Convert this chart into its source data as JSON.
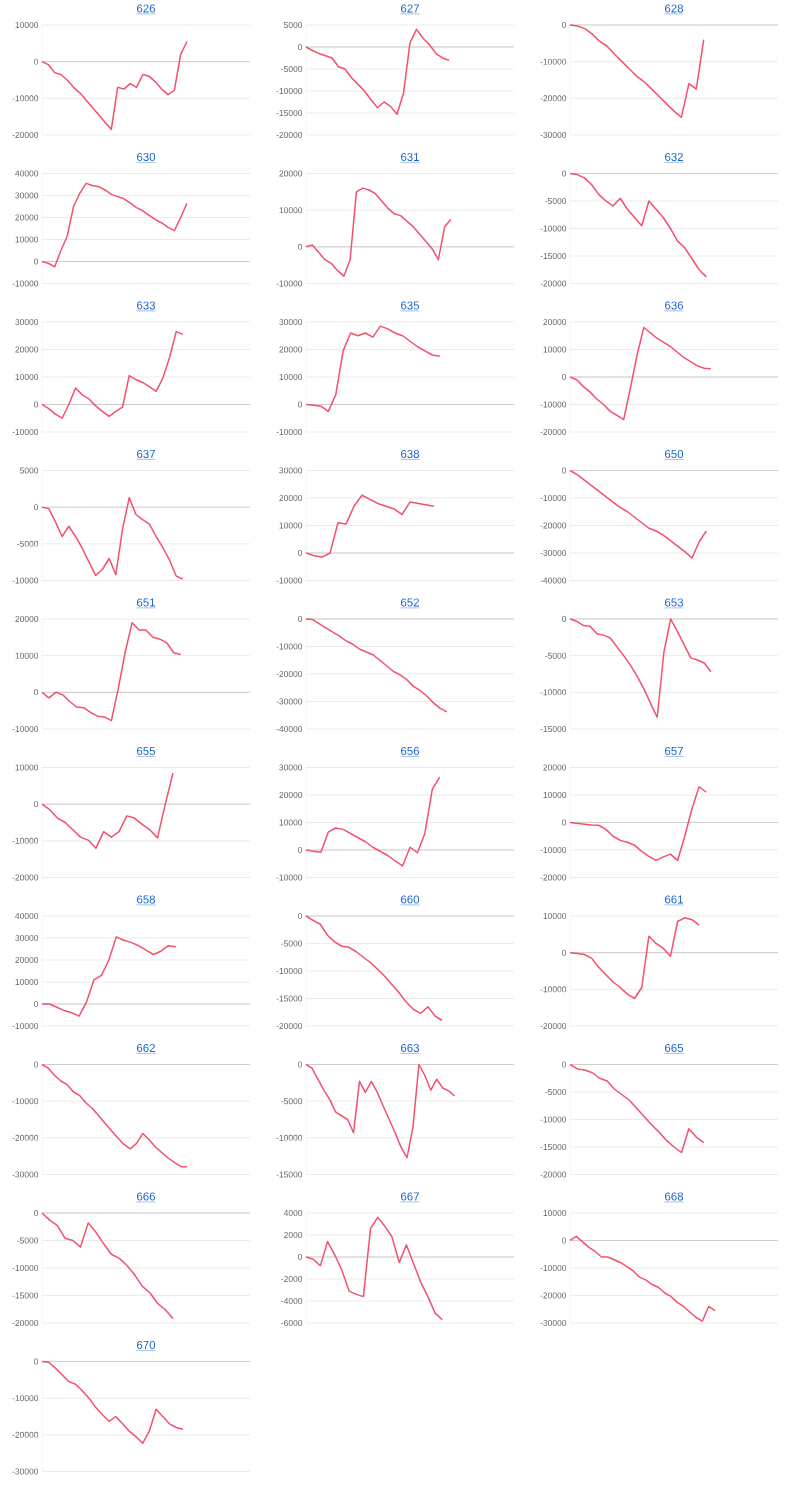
{
  "chart_data": [
    {
      "type": "line",
      "title": "626",
      "color": "#f5506e",
      "grid": "y",
      "tick_labels": "y",
      "ylim": [
        -20000,
        10000
      ],
      "yticks": [
        -20000,
        -10000,
        0,
        10000
      ],
      "categories": [
        null,
        null,
        null,
        null,
        null,
        null,
        null,
        null,
        null,
        null,
        null,
        null,
        null,
        null,
        null,
        null,
        null,
        null,
        null,
        null,
        null,
        null,
        null,
        null,
        null,
        null,
        null,
        null,
        null,
        null,
        null,
        null,
        null,
        null
      ],
      "values": [
        0,
        -800,
        -3000,
        -3500,
        -5000,
        -7000,
        -8500,
        -10500,
        -12500,
        -14500,
        -16500,
        -18500,
        -7000,
        -7500,
        -6000,
        -7000,
        -3500,
        -4000,
        -5500,
        -7500,
        -9000,
        -7800,
        2000,
        5500,
        null,
        null,
        null,
        null,
        null,
        null,
        null,
        null,
        null,
        null
      ]
    },
    {
      "type": "line",
      "title": "627",
      "color": "#f5506e",
      "grid": "y",
      "tick_labels": "y",
      "ylim": [
        -20000,
        5000
      ],
      "yticks": [
        -20000,
        -15000,
        -10000,
        -5000,
        0,
        5000
      ],
      "categories": [
        null,
        null,
        null,
        null,
        null,
        null,
        null,
        null,
        null,
        null,
        null,
        null,
        null,
        null,
        null,
        null,
        null,
        null,
        null,
        null,
        null,
        null,
        null,
        null,
        null,
        null,
        null,
        null,
        null,
        null,
        null,
        null,
        null
      ],
      "values": [
        0,
        -800,
        -1500,
        -2000,
        -2500,
        -4500,
        -5000,
        -7000,
        -8500,
        -10000,
        -12000,
        -13800,
        -12500,
        -13500,
        -15300,
        -10500,
        1000,
        4000,
        2000,
        500,
        -1500,
        -2500,
        -3000,
        null,
        null,
        null,
        null,
        null,
        null,
        null,
        null,
        null,
        null
      ]
    },
    {
      "type": "line",
      "title": "628",
      "color": "#f5506e",
      "grid": "y",
      "tick_labels": "y",
      "ylim": [
        -30000,
        0
      ],
      "yticks": [
        -30000,
        -20000,
        -10000,
        0
      ],
      "categories": [
        null,
        null,
        null,
        null,
        null,
        null,
        null,
        null,
        null,
        null,
        null,
        null,
        null,
        null,
        null,
        null,
        null,
        null,
        null,
        null,
        null,
        null,
        null,
        null,
        null,
        null,
        null,
        null,
        null
      ],
      "values": [
        0,
        -300,
        -1000,
        -2500,
        -4500,
        -5800,
        -8000,
        -10000,
        -12000,
        -14000,
        -15500,
        -17500,
        -19500,
        -21500,
        -23500,
        -25200,
        -16000,
        -17500,
        -4000,
        null,
        null,
        null,
        null,
        null,
        null,
        null,
        null,
        null,
        null
      ]
    },
    {
      "type": "line",
      "title": "630",
      "color": "#f5506e",
      "grid": "y",
      "tick_labels": "y",
      "ylim": [
        -10000,
        40000
      ],
      "yticks": [
        -10000,
        0,
        10000,
        20000,
        30000,
        40000
      ],
      "categories": [
        null,
        null,
        null,
        null,
        null,
        null,
        null,
        null,
        null,
        null,
        null,
        null,
        null,
        null,
        null,
        null,
        null,
        null,
        null,
        null,
        null,
        null,
        null,
        null,
        null,
        null,
        null,
        null,
        null,
        null,
        null,
        null,
        null,
        null
      ],
      "values": [
        0,
        -800,
        -2500,
        5000,
        11500,
        25000,
        31000,
        35500,
        34500,
        34000,
        32500,
        30500,
        29500,
        28500,
        26500,
        24500,
        23000,
        21000,
        19000,
        17500,
        15500,
        14000,
        20000,
        26500,
        null,
        null,
        null,
        null,
        null,
        null,
        null,
        null,
        null,
        null
      ]
    },
    {
      "type": "line",
      "title": "631",
      "color": "#f5506e",
      "grid": "y",
      "tick_labels": "y",
      "ylim": [
        -10000,
        20000
      ],
      "yticks": [
        -10000,
        0,
        10000,
        20000
      ],
      "categories": [
        null,
        null,
        null,
        null,
        null,
        null,
        null,
        null,
        null,
        null,
        null,
        null,
        null,
        null,
        null,
        null,
        null,
        null,
        null,
        null,
        null,
        null,
        null,
        null,
        null,
        null,
        null,
        null,
        null,
        null,
        null,
        null,
        null,
        null
      ],
      "values": [
        0,
        500,
        -1500,
        -3500,
        -4500,
        -6500,
        -8000,
        -3500,
        15000,
        16000,
        15500,
        14500,
        12500,
        10500,
        9000,
        8500,
        7000,
        5500,
        3500,
        1500,
        -500,
        -3500,
        5500,
        7500,
        null,
        null,
        null,
        null,
        null,
        null,
        null,
        null,
        null,
        null
      ]
    },
    {
      "type": "line",
      "title": "632",
      "color": "#f5506e",
      "grid": "y",
      "tick_labels": "y",
      "ylim": [
        -20000,
        0
      ],
      "yticks": [
        -20000,
        -15000,
        -10000,
        -5000,
        0
      ],
      "categories": [
        null,
        null,
        null,
        null,
        null,
        null,
        null,
        null,
        null,
        null,
        null,
        null,
        null,
        null,
        null,
        null,
        null,
        null,
        null,
        null,
        null,
        null,
        null,
        null,
        null,
        null,
        null,
        null,
        null,
        null
      ],
      "values": [
        0,
        -200,
        -800,
        -2000,
        -3800,
        -5000,
        -5900,
        -4500,
        -6500,
        -8000,
        -9500,
        -5000,
        -6500,
        -8000,
        -10000,
        -12300,
        -13500,
        -15500,
        -17500,
        -18800,
        null,
        null,
        null,
        null,
        null,
        null,
        null,
        null,
        null,
        null
      ]
    },
    {
      "type": "line",
      "title": "633",
      "color": "#f5506e",
      "grid": "y",
      "tick_labels": "y",
      "ylim": [
        -10000,
        30000
      ],
      "yticks": [
        -10000,
        0,
        10000,
        20000,
        30000
      ],
      "categories": [
        null,
        null,
        null,
        null,
        null,
        null,
        null,
        null,
        null,
        null,
        null,
        null,
        null,
        null,
        null,
        null,
        null,
        null,
        null,
        null,
        null,
        null,
        null,
        null,
        null,
        null,
        null,
        null,
        null,
        null,
        null,
        null
      ],
      "values": [
        0,
        -1500,
        -3500,
        -5000,
        0,
        6000,
        3500,
        2000,
        -500,
        -2500,
        -4300,
        -2500,
        -1000,
        10500,
        9000,
        8000,
        6500,
        4800,
        9500,
        17000,
        26500,
        25500,
        null,
        null,
        null,
        null,
        null,
        null,
        null,
        null,
        null,
        null
      ]
    },
    {
      "type": "line",
      "title": "635",
      "color": "#f5506e",
      "grid": "y",
      "tick_labels": "y",
      "ylim": [
        -10000,
        30000
      ],
      "yticks": [
        -10000,
        0,
        10000,
        20000,
        30000
      ],
      "categories": [
        null,
        null,
        null,
        null,
        null,
        null,
        null,
        null,
        null,
        null,
        null,
        null,
        null,
        null,
        null,
        null,
        null,
        null,
        null,
        null,
        null,
        null,
        null,
        null,
        null,
        null,
        null,
        null,
        null
      ],
      "values": [
        0,
        -300,
        -600,
        -2500,
        3500,
        19500,
        26000,
        25000,
        26000,
        24500,
        28500,
        27500,
        26000,
        25000,
        23000,
        21000,
        19500,
        18000,
        17500,
        null,
        null,
        null,
        null,
        null,
        null,
        null,
        null,
        null,
        null
      ]
    },
    {
      "type": "line",
      "title": "636",
      "color": "#f5506e",
      "grid": "y",
      "tick_labels": "y",
      "ylim": [
        -20000,
        20000
      ],
      "yticks": [
        -20000,
        -10000,
        0,
        10000,
        20000
      ],
      "categories": [
        null,
        null,
        null,
        null,
        null,
        null,
        null,
        null,
        null,
        null,
        null,
        null,
        null,
        null,
        null,
        null,
        null,
        null,
        null,
        null,
        null,
        null,
        null,
        null,
        null,
        null,
        null,
        null,
        null,
        null,
        null,
        null
      ],
      "values": [
        0,
        -1000,
        -3500,
        -5500,
        -8000,
        -10000,
        -12500,
        -14000,
        -15500,
        -4000,
        8000,
        18000,
        16000,
        14000,
        12500,
        11000,
        9000,
        7000,
        5500,
        4000,
        3200,
        3000,
        null,
        null,
        null,
        null,
        null,
        null,
        null,
        null,
        null,
        null
      ]
    },
    {
      "type": "line",
      "title": "637",
      "color": "#f5506e",
      "grid": "y",
      "tick_labels": "y",
      "ylim": [
        -10000,
        5000
      ],
      "yticks": [
        -10000,
        -5000,
        0,
        5000
      ],
      "categories": [
        null,
        null,
        null,
        null,
        null,
        null,
        null,
        null,
        null,
        null,
        null,
        null,
        null,
        null,
        null,
        null,
        null,
        null,
        null,
        null,
        null,
        null,
        null,
        null,
        null,
        null,
        null,
        null,
        null,
        null,
        null,
        null
      ],
      "values": [
        0,
        -200,
        -2000,
        -4000,
        -2600,
        -4000,
        -5600,
        -7500,
        -9300,
        -8500,
        -7000,
        -9200,
        -3000,
        1300,
        -1000,
        -1700,
        -2300,
        -4000,
        -5500,
        -7200,
        -9400,
        -9800,
        null,
        null,
        null,
        null,
        null,
        null,
        null,
        null,
        null,
        null
      ]
    },
    {
      "type": "line",
      "title": "638",
      "color": "#f5506e",
      "grid": "y",
      "tick_labels": "y",
      "ylim": [
        -10000,
        30000
      ],
      "yticks": [
        -10000,
        0,
        10000,
        20000,
        30000
      ],
      "categories": [
        null,
        null,
        null,
        null,
        null,
        null,
        null,
        null,
        null,
        null,
        null,
        null,
        null,
        null,
        null,
        null,
        null,
        null,
        null,
        null,
        null,
        null,
        null,
        null,
        null,
        null,
        null
      ],
      "values": [
        0,
        -1000,
        -1500,
        0,
        11000,
        10500,
        17000,
        21000,
        19500,
        18000,
        17000,
        16000,
        14000,
        18500,
        18000,
        17500,
        17000,
        null,
        null,
        null,
        null,
        null,
        null,
        null,
        null,
        null,
        null
      ]
    },
    {
      "type": "line",
      "title": "650",
      "color": "#f5506e",
      "grid": "y",
      "tick_labels": "y",
      "ylim": [
        -40000,
        0
      ],
      "yticks": [
        -40000,
        -30000,
        -20000,
        -10000,
        0
      ],
      "categories": [
        null,
        null,
        null,
        null,
        null,
        null,
        null,
        null,
        null,
        null,
        null,
        null,
        null,
        null,
        null,
        null,
        null,
        null,
        null,
        null,
        null,
        null,
        null,
        null,
        null,
        null,
        null,
        null,
        null,
        null
      ],
      "values": [
        0,
        -1500,
        -3500,
        -5500,
        -7500,
        -9500,
        -11500,
        -13500,
        -15000,
        -17000,
        -19000,
        -21000,
        -22000,
        -23500,
        -25500,
        -27500,
        -29500,
        -31800,
        -26000,
        -22000,
        null,
        null,
        null,
        null,
        null,
        null,
        null,
        null,
        null,
        null
      ]
    },
    {
      "type": "line",
      "title": "651",
      "color": "#f5506e",
      "grid": "y",
      "tick_labels": "y",
      "ylim": [
        -10000,
        20000
      ],
      "yticks": [
        -10000,
        0,
        10000,
        20000
      ],
      "categories": [
        null,
        null,
        null,
        null,
        null,
        null,
        null,
        null,
        null,
        null,
        null,
        null,
        null,
        null,
        null,
        null,
        null,
        null,
        null,
        null,
        null,
        null,
        null,
        null,
        null,
        null,
        null,
        null,
        null,
        null,
        null
      ],
      "values": [
        0,
        -1500,
        0,
        -700,
        -2500,
        -4000,
        -4200,
        -5500,
        -6500,
        -6700,
        -7700,
        1000,
        11000,
        19000,
        17000,
        17000,
        15000,
        14500,
        13500,
        10800,
        10300,
        null,
        null,
        null,
        null,
        null,
        null,
        null,
        null,
        null,
        null
      ]
    },
    {
      "type": "line",
      "title": "652",
      "color": "#f5506e",
      "grid": "y",
      "tick_labels": "y",
      "ylim": [
        -40000,
        0
      ],
      "yticks": [
        -40000,
        -30000,
        -20000,
        -10000,
        0
      ],
      "categories": [
        null,
        null,
        null,
        null,
        null,
        null,
        null,
        null,
        null,
        null,
        null,
        null,
        null,
        null,
        null,
        null,
        null,
        null,
        null,
        null,
        null,
        null,
        null,
        null,
        null,
        null,
        null,
        null,
        null,
        null,
        null,
        null
      ],
      "values": [
        0,
        -200,
        -1800,
        -3300,
        -4800,
        -6200,
        -8000,
        -9200,
        -11000,
        -12000,
        -13000,
        -15000,
        -17000,
        -19000,
        -20300,
        -22000,
        -24500,
        -26000,
        -28000,
        -30500,
        -32500,
        -33800,
        null,
        null,
        null,
        null,
        null,
        null,
        null,
        null,
        null,
        null
      ]
    },
    {
      "type": "line",
      "title": "653",
      "color": "#f5506e",
      "grid": "y",
      "tick_labels": "y",
      "ylim": [
        -15000,
        0
      ],
      "yticks": [
        -15000,
        -10000,
        -5000,
        0
      ],
      "categories": [
        null,
        null,
        null,
        null,
        null,
        null,
        null,
        null,
        null,
        null,
        null,
        null,
        null,
        null,
        null,
        null,
        null,
        null,
        null,
        null,
        null,
        null,
        null,
        null,
        null,
        null,
        null,
        null,
        null,
        null,
        null,
        null
      ],
      "values": [
        0,
        -300,
        -900,
        -1000,
        -2000,
        -2200,
        -2600,
        -3800,
        -5000,
        -6300,
        -7800,
        -9500,
        -11500,
        -13400,
        -4500,
        0,
        -1700,
        -3500,
        -5300,
        -5600,
        -6000,
        -7200,
        null,
        null,
        null,
        null,
        null,
        null,
        null,
        null,
        null,
        null
      ]
    },
    {
      "type": "line",
      "title": "655",
      "color": "#f5506e",
      "grid": "y",
      "tick_labels": "y",
      "ylim": [
        -20000,
        10000
      ],
      "yticks": [
        -20000,
        -10000,
        0,
        10000
      ],
      "categories": [
        null,
        null,
        null,
        null,
        null,
        null,
        null,
        null,
        null,
        null,
        null,
        null,
        null,
        null,
        null,
        null,
        null,
        null,
        null,
        null,
        null,
        null,
        null,
        null,
        null,
        null,
        null,
        null
      ],
      "values": [
        0,
        -1500,
        -3800,
        -5000,
        -7000,
        -9000,
        -9800,
        -12000,
        -7500,
        -9000,
        -7500,
        -3200,
        -3800,
        -5500,
        -7000,
        -9200,
        0,
        8500,
        null,
        null,
        null,
        null,
        null,
        null,
        null,
        null,
        null,
        null
      ]
    },
    {
      "type": "line",
      "title": "656",
      "color": "#f5506e",
      "grid": "y",
      "tick_labels": "y",
      "ylim": [
        -10000,
        30000
      ],
      "yticks": [
        -10000,
        0,
        10000,
        20000,
        30000
      ],
      "categories": [
        null,
        null,
        null,
        null,
        null,
        null,
        null,
        null,
        null,
        null,
        null,
        null,
        null,
        null,
        null,
        null,
        null,
        null,
        null,
        null,
        null,
        null,
        null,
        null,
        null,
        null,
        null,
        null,
        null
      ],
      "values": [
        0,
        -500,
        -800,
        6500,
        8000,
        7500,
        6000,
        4500,
        3000,
        1000,
        -500,
        -2000,
        -4000,
        -5800,
        1000,
        -1000,
        6000,
        22000,
        26500,
        null,
        null,
        null,
        null,
        null,
        null,
        null,
        null,
        null,
        null
      ]
    },
    {
      "type": "line",
      "title": "657",
      "color": "#f5506e",
      "grid": "y",
      "tick_labels": "y",
      "ylim": [
        -20000,
        20000
      ],
      "yticks": [
        -20000,
        -10000,
        0,
        10000,
        20000
      ],
      "categories": [
        null,
        null,
        null,
        null,
        null,
        null,
        null,
        null,
        null,
        null,
        null,
        null,
        null,
        null,
        null,
        null,
        null,
        null,
        null,
        null,
        null,
        null,
        null,
        null,
        null,
        null,
        null,
        null,
        null,
        null
      ],
      "values": [
        0,
        -300,
        -600,
        -900,
        -1000,
        -2500,
        -5000,
        -6500,
        -7200,
        -8300,
        -10500,
        -12300,
        -13800,
        -12500,
        -11500,
        -13800,
        -5000,
        5000,
        13000,
        11000,
        null,
        null,
        null,
        null,
        null,
        null,
        null,
        null,
        null,
        null
      ]
    },
    {
      "type": "line",
      "title": "658",
      "color": "#f5506e",
      "grid": "y",
      "tick_labels": "y",
      "ylim": [
        -10000,
        40000
      ],
      "yticks": [
        -10000,
        0,
        10000,
        20000,
        30000,
        40000
      ],
      "categories": [
        null,
        null,
        null,
        null,
        null,
        null,
        null,
        null,
        null,
        null,
        null,
        null,
        null,
        null,
        null,
        null,
        null,
        null,
        null,
        null,
        null,
        null,
        null,
        null,
        null,
        null,
        null,
        null,
        null
      ],
      "values": [
        0,
        0,
        -1500,
        -3000,
        -4000,
        -5500,
        1000,
        11000,
        13000,
        20000,
        30500,
        29000,
        28000,
        26500,
        24500,
        22500,
        24000,
        26500,
        26000,
        null,
        null,
        null,
        null,
        null,
        null,
        null,
        null,
        null,
        null
      ]
    },
    {
      "type": "line",
      "title": "660",
      "color": "#f5506e",
      "grid": "y",
      "tick_labels": "y",
      "ylim": [
        -20000,
        0
      ],
      "yticks": [
        -20000,
        -15000,
        -10000,
        -5000,
        0
      ],
      "categories": [
        null,
        null,
        null,
        null,
        null,
        null,
        null,
        null,
        null,
        null,
        null,
        null,
        null,
        null,
        null,
        null,
        null,
        null,
        null,
        null,
        null,
        null,
        null,
        null,
        null,
        null,
        null,
        null,
        null,
        null
      ],
      "values": [
        0,
        -800,
        -1500,
        -3500,
        -4700,
        -5500,
        -5700,
        -6500,
        -7500,
        -8500,
        -9700,
        -11000,
        -12500,
        -14000,
        -15700,
        -17000,
        -17700,
        -16500,
        -18200,
        -19000,
        null,
        null,
        null,
        null,
        null,
        null,
        null,
        null,
        null,
        null
      ]
    },
    {
      "type": "line",
      "title": "661",
      "color": "#f5506e",
      "grid": "y",
      "tick_labels": "y",
      "ylim": [
        -20000,
        10000
      ],
      "yticks": [
        -20000,
        -10000,
        0,
        10000
      ],
      "categories": [
        null,
        null,
        null,
        null,
        null,
        null,
        null,
        null,
        null,
        null,
        null,
        null,
        null,
        null,
        null,
        null,
        null,
        null,
        null,
        null,
        null,
        null,
        null,
        null,
        null,
        null,
        null,
        null,
        null,
        null
      ],
      "values": [
        0,
        -200,
        -500,
        -1500,
        -4000,
        -6000,
        -8000,
        -9500,
        -11300,
        -12500,
        -9500,
        4500,
        2500,
        1200,
        -1000,
        8500,
        9500,
        9000,
        7500,
        null,
        null,
        null,
        null,
        null,
        null,
        null,
        null,
        null,
        null,
        null
      ]
    },
    {
      "type": "line",
      "title": "662",
      "color": "#f5506e",
      "grid": "y",
      "tick_labels": "y",
      "ylim": [
        -30000,
        0
      ],
      "yticks": [
        -30000,
        -20000,
        -10000,
        0
      ],
      "categories": [
        null,
        null,
        null,
        null,
        null,
        null,
        null,
        null,
        null,
        null,
        null,
        null,
        null,
        null,
        null,
        null,
        null,
        null,
        null,
        null,
        null,
        null,
        null,
        null,
        null,
        null,
        null,
        null,
        null,
        null,
        null,
        null,
        null,
        null
      ],
      "values": [
        0,
        -1000,
        -3000,
        -4500,
        -5500,
        -7500,
        -8500,
        -10500,
        -12000,
        -14000,
        -16000,
        -18000,
        -20000,
        -21800,
        -23000,
        -21500,
        -18800,
        -20500,
        -22500,
        -24000,
        -25500,
        -26700,
        -27800,
        -27900,
        null,
        null,
        null,
        null,
        null,
        null,
        null,
        null,
        null,
        null
      ]
    },
    {
      "type": "line",
      "title": "663",
      "color": "#f5506e",
      "grid": "y",
      "tick_labels": "y",
      "ylim": [
        -15000,
        0
      ],
      "yticks": [
        -15000,
        -10000,
        -5000,
        0
      ],
      "categories": [
        null,
        null,
        null,
        null,
        null,
        null,
        null,
        null,
        null,
        null,
        null,
        null,
        null,
        null,
        null,
        null,
        null,
        null,
        null,
        null,
        null,
        null,
        null,
        null,
        null,
        null,
        null,
        null,
        null,
        null,
        null,
        null,
        null,
        null,
        null,
        null
      ],
      "values": [
        0,
        -500,
        -2000,
        -3500,
        -4800,
        -6500,
        -7000,
        -7500,
        -9300,
        -2300,
        -3800,
        -2300,
        -3800,
        -5700,
        -7500,
        -9300,
        -11300,
        -12700,
        -8500,
        0,
        -1500,
        -3500,
        -2000,
        -3200,
        -3600,
        -4300,
        null,
        null,
        null,
        null,
        null,
        null,
        null,
        null,
        null,
        null
      ]
    },
    {
      "type": "line",
      "title": "665",
      "color": "#f5506e",
      "grid": "y",
      "tick_labels": "y",
      "ylim": [
        -20000,
        0
      ],
      "yticks": [
        -20000,
        -15000,
        -10000,
        -5000,
        0
      ],
      "categories": [
        null,
        null,
        null,
        null,
        null,
        null,
        null,
        null,
        null,
        null,
        null,
        null,
        null,
        null,
        null,
        null,
        null,
        null,
        null,
        null,
        null,
        null,
        null,
        null,
        null,
        null,
        null,
        null,
        null
      ],
      "values": [
        0,
        -800,
        -1000,
        -1500,
        -2500,
        -3000,
        -4500,
        -5500,
        -6500,
        -8000,
        -9500,
        -11000,
        -12300,
        -13800,
        -15000,
        -16000,
        -11700,
        -13200,
        -14200,
        null,
        null,
        null,
        null,
        null,
        null,
        null,
        null,
        null,
        null
      ]
    },
    {
      "type": "line",
      "title": "666",
      "color": "#f5506e",
      "grid": "y",
      "tick_labels": "y",
      "ylim": [
        -20000,
        0
      ],
      "yticks": [
        -20000,
        -15000,
        -10000,
        -5000,
        0
      ],
      "categories": [
        null,
        null,
        null,
        null,
        null,
        null,
        null,
        null,
        null,
        null,
        null,
        null,
        null,
        null,
        null,
        null,
        null,
        null,
        null,
        null,
        null,
        null,
        null,
        null,
        null,
        null,
        null,
        null
      ],
      "values": [
        0,
        -1300,
        -2300,
        -4600,
        -5000,
        -6200,
        -1800,
        -3500,
        -5600,
        -7500,
        -8200,
        -9500,
        -11200,
        -13300,
        -14500,
        -16400,
        -17600,
        -19200,
        null,
        null,
        null,
        null,
        null,
        null,
        null,
        null,
        null,
        null
      ]
    },
    {
      "type": "line",
      "title": "667",
      "color": "#f5506e",
      "grid": "y",
      "tick_labels": "y",
      "ylim": [
        -6000,
        4000
      ],
      "yticks": [
        -6000,
        -4000,
        -2000,
        0,
        2000,
        4000
      ],
      "categories": [
        null,
        null,
        null,
        null,
        null,
        null,
        null,
        null,
        null,
        null,
        null,
        null,
        null,
        null,
        null,
        null,
        null,
        null,
        null,
        null,
        null,
        null,
        null,
        null,
        null,
        null,
        null,
        null,
        null,
        null
      ],
      "values": [
        0,
        -200,
        -800,
        1400,
        200,
        -1200,
        -3100,
        -3400,
        -3600,
        2600,
        3600,
        2800,
        1800,
        -500,
        1100,
        -600,
        -2300,
        -3600,
        -5100,
        -5700,
        null,
        null,
        null,
        null,
        null,
        null,
        null,
        null,
        null,
        null
      ]
    },
    {
      "type": "line",
      "title": "668",
      "color": "#f5506e",
      "grid": "y",
      "tick_labels": "y",
      "ylim": [
        -30000,
        10000
      ],
      "yticks": [
        -30000,
        -20000,
        -10000,
        0,
        10000
      ],
      "categories": [
        null,
        null,
        null,
        null,
        null,
        null,
        null,
        null,
        null,
        null,
        null,
        null,
        null,
        null,
        null,
        null,
        null,
        null,
        null,
        null,
        null,
        null,
        null,
        null,
        null,
        null,
        null,
        null,
        null,
        null,
        null,
        null,
        null,
        null
      ],
      "values": [
        0,
        1500,
        -500,
        -2500,
        -4000,
        -6000,
        -6000,
        -7000,
        -8000,
        -9500,
        -11000,
        -13300,
        -14300,
        -16000,
        -17000,
        -19000,
        -20300,
        -22500,
        -24000,
        -26000,
        -28000,
        -29300,
        -24000,
        -25500,
        null,
        null,
        null,
        null,
        null,
        null,
        null,
        null,
        null,
        null
      ]
    },
    {
      "type": "line",
      "title": "670",
      "color": "#f5506e",
      "grid": "y",
      "tick_labels": "y",
      "ylim": [
        -30000,
        0
      ],
      "yticks": [
        -30000,
        -20000,
        -10000,
        0
      ],
      "categories": [
        null,
        null,
        null,
        null,
        null,
        null,
        null,
        null,
        null,
        null,
        null,
        null,
        null,
        null,
        null,
        null,
        null,
        null,
        null,
        null,
        null,
        null,
        null,
        null,
        null,
        null,
        null,
        null,
        null,
        null,
        null,
        null
      ],
      "values": [
        0,
        -200,
        -1800,
        -3600,
        -5500,
        -6200,
        -8000,
        -10000,
        -12500,
        -14500,
        -16300,
        -15000,
        -17000,
        -19000,
        -20500,
        -22300,
        -19000,
        -13000,
        -15000,
        -17000,
        -18000,
        -18500,
        null,
        null,
        null,
        null,
        null,
        null,
        null,
        null,
        null,
        null
      ]
    }
  ]
}
